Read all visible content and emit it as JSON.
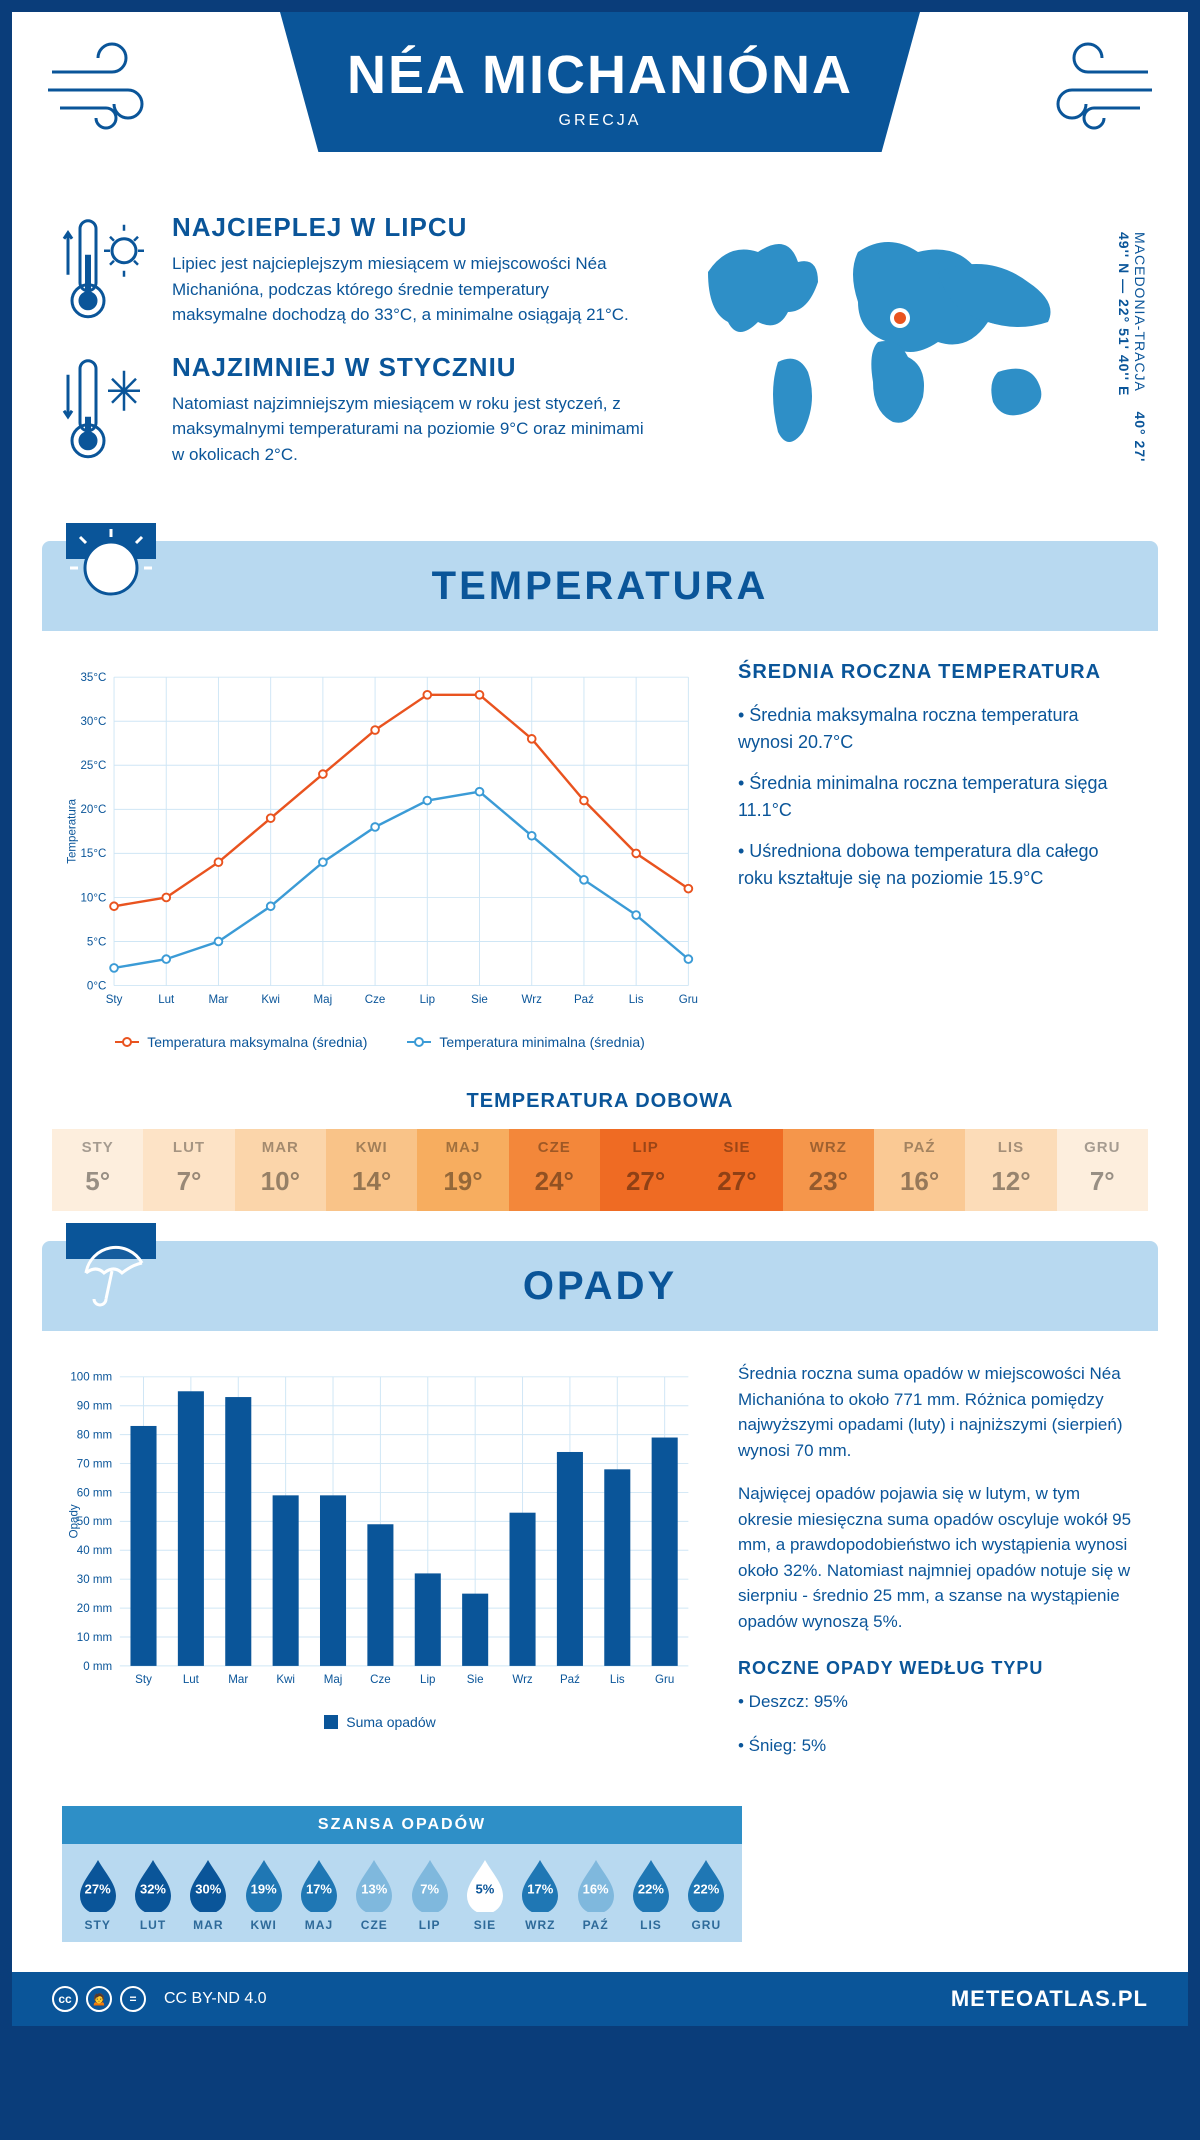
{
  "header": {
    "title": "NÉA MICHANIÓNA",
    "subtitle": "GRECJA"
  },
  "coords": {
    "line": "40° 27' 49'' N — 22° 51' 40'' E",
    "region": "MACEDONIA-TRACJA"
  },
  "intro": {
    "hot": {
      "title": "NAJCIEPLEJ W LIPCU",
      "text": "Lipiec jest najcieplejszym miesiącem w miejscowości Néa Michanióna, podczas którego średnie temperatury maksymalne dochodzą do 33°C, a minimalne osiągają 21°C."
    },
    "cold": {
      "title": "NAJZIMNIEJ W STYCZNIU",
      "text": "Natomiast najzimniejszym miesiącem w roku jest styczeń, z maksymalnymi temperaturami na poziomie 9°C oraz minimami w okolicach 2°C."
    }
  },
  "temp_section": {
    "heading": "TEMPERATURA",
    "chart": {
      "type": "line",
      "months": [
        "Sty",
        "Lut",
        "Mar",
        "Kwi",
        "Maj",
        "Cze",
        "Lip",
        "Sie",
        "Wrz",
        "Paź",
        "Lis",
        "Gru"
      ],
      "y_label": "Temperatura",
      "y_min": 0,
      "y_max": 35,
      "y_step": 5,
      "y_ticks": [
        "0°C",
        "5°C",
        "10°C",
        "15°C",
        "20°C",
        "25°C",
        "30°C",
        "35°C"
      ],
      "series": {
        "max": {
          "label": "Temperatura maksymalna (średnia)",
          "color": "#e9531f",
          "values": [
            9,
            10,
            14,
            19,
            24,
            29,
            33,
            33,
            28,
            21,
            15,
            11
          ]
        },
        "min": {
          "label": "Temperatura minimalna (średnia)",
          "color": "#3b9bd6",
          "values": [
            2,
            3,
            5,
            9,
            14,
            18,
            21,
            22,
            17,
            12,
            8,
            3
          ]
        }
      },
      "grid_color": "#cfe6f5",
      "axis_color": "#0a5599",
      "font_size": 12
    },
    "annual": {
      "title": "ŚREDNIA ROCZNA TEMPERATURA",
      "bullets": [
        "• Średnia maksymalna roczna temperatura wynosi 20.7°C",
        "• Średnia minimalna roczna temperatura sięga 11.1°C",
        "• Uśredniona dobowa temperatura dla całego roku kształtuje się na poziomie 15.9°C"
      ]
    },
    "dobowa": {
      "title": "TEMPERATURA DOBOWA",
      "months": [
        "STY",
        "LUT",
        "MAR",
        "KWI",
        "MAJ",
        "CZE",
        "LIP",
        "SIE",
        "WRZ",
        "PAŹ",
        "LIS",
        "GRU"
      ],
      "values": [
        "5°",
        "7°",
        "10°",
        "14°",
        "19°",
        "24°",
        "27°",
        "27°",
        "23°",
        "16°",
        "12°",
        "7°"
      ],
      "colors": [
        "#fdeedd",
        "#fde3c6",
        "#fbd5aa",
        "#f9c388",
        "#f7ad5f",
        "#f3873a",
        "#ef6b23",
        "#ef6b23",
        "#f5964b",
        "#fac994",
        "#fcdcb8",
        "#fdeedd"
      ]
    }
  },
  "opady_section": {
    "heading": "OPADY",
    "chart": {
      "type": "bar",
      "months": [
        "Sty",
        "Lut",
        "Mar",
        "Kwi",
        "Maj",
        "Cze",
        "Lip",
        "Sie",
        "Wrz",
        "Paź",
        "Lis",
        "Gru"
      ],
      "y_label": "Opady",
      "y_min": 0,
      "y_max": 100,
      "y_step": 10,
      "y_ticks": [
        "0 mm",
        "10 mm",
        "20 mm",
        "30 mm",
        "40 mm",
        "50 mm",
        "60 mm",
        "70 mm",
        "80 mm",
        "90 mm",
        "100 mm"
      ],
      "values": [
        83,
        95,
        93,
        59,
        59,
        49,
        32,
        25,
        53,
        74,
        68,
        79
      ],
      "bar_color": "#0a5599",
      "grid_color": "#cfe6f5",
      "legend_label": "Suma opadów"
    },
    "text": [
      "Średnia roczna suma opadów w miejscowości Néa Michanióna to około 771 mm. Różnica pomiędzy najwyższymi opadami (luty) i najniższymi (sierpień) wynosi 70 mm.",
      "Najwięcej opadów pojawia się w lutym, w tym okresie miesięczna suma opadów oscyluje wokół 95 mm, a prawdopodobieństwo ich wystąpienia wynosi około 32%. Natomiast najmniej opadów notuje się w sierpniu - średnio 25 mm, a szanse na wystąpienie opadów wynoszą 5%."
    ],
    "szansa": {
      "title": "SZANSA OPADÓW",
      "months": [
        "STY",
        "LUT",
        "MAR",
        "KWI",
        "MAJ",
        "CZE",
        "LIP",
        "SIE",
        "WRZ",
        "PAŹ",
        "LIS",
        "GRU"
      ],
      "values": [
        "27%",
        "32%",
        "30%",
        "19%",
        "17%",
        "13%",
        "7%",
        "5%",
        "17%",
        "16%",
        "22%",
        "22%"
      ],
      "pct": [
        27,
        32,
        30,
        19,
        17,
        13,
        7,
        5,
        17,
        16,
        22,
        22
      ]
    },
    "types": {
      "title": "ROCZNE OPADY WEDŁUG TYPU",
      "items": [
        "• Deszcz: 95%",
        "• Śnieg: 5%"
      ]
    }
  },
  "footer": {
    "license": "CC BY-ND 4.0",
    "site": "METEOATLAS.PL"
  },
  "colors": {
    "primary": "#0a5599",
    "light": "#b8d9f0",
    "mid": "#3b9bd6"
  }
}
